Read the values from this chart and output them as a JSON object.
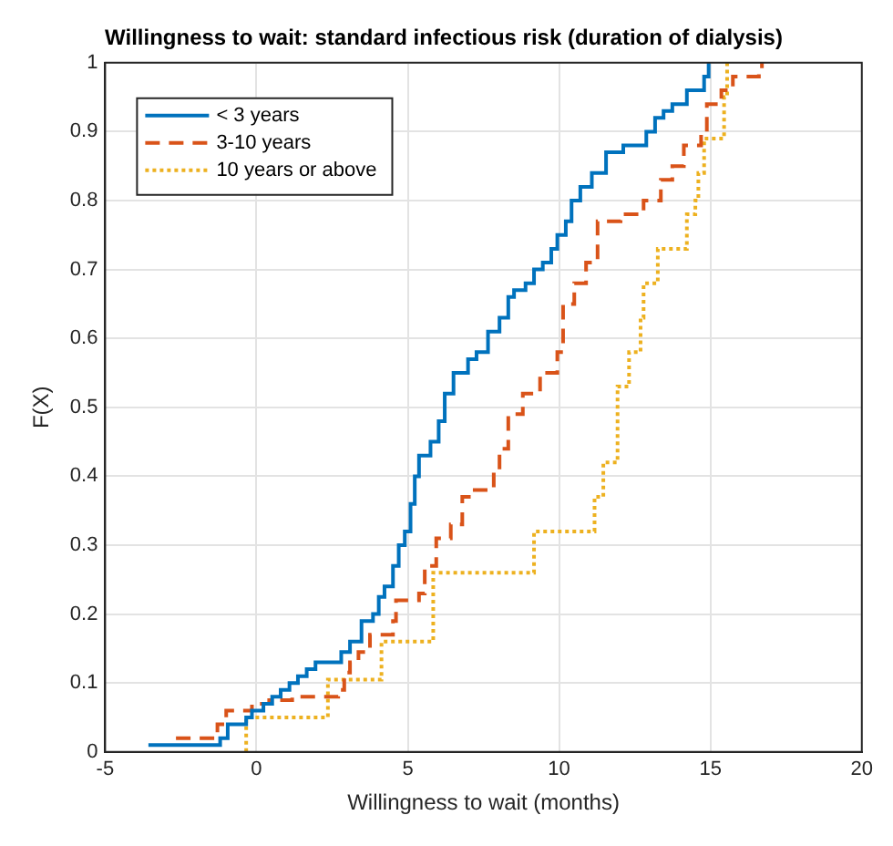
{
  "chart_data": {
    "type": "step",
    "title": "Willingness to wait: standard infectious risk (duration of dialysis)",
    "xlabel": "Willingness to wait (months)",
    "ylabel": "F(X)",
    "xlim": [
      -5,
      20
    ],
    "xticks": [
      -5,
      0,
      5,
      10,
      15,
      20
    ],
    "ylim": [
      0,
      1
    ],
    "yticks": [
      0,
      0.1,
      0.2,
      0.3,
      0.4,
      0.5,
      0.6,
      0.7,
      0.8,
      0.9,
      1
    ],
    "grid": true,
    "legend": "top left",
    "series": [
      {
        "name": "< 3 years",
        "color": "#0072bd",
        "line_style": "solid",
        "x": [
          -3.57,
          -1.35,
          -1.2,
          -0.95,
          -0.34,
          -0.15,
          0.23,
          0.52,
          0.8,
          1.09,
          1.37,
          1.66,
          1.95,
          2.8,
          3.09,
          3.47,
          3.85,
          4.04,
          4.23,
          4.51,
          4.7,
          4.9,
          5.09,
          5.23,
          5.37,
          5.75,
          6.02,
          6.22,
          6.51,
          6.99,
          7.27,
          7.65,
          8.03,
          8.32,
          8.51,
          8.89,
          9.17,
          9.46,
          9.74,
          9.94,
          10.22,
          10.41,
          10.7,
          11.08,
          11.55,
          12.12,
          12.6,
          12.88,
          13.17,
          13.45,
          13.74,
          14.22,
          14.79,
          14.94
        ],
        "values": [
          0.01,
          0.01,
          0.02,
          0.04,
          0.05,
          0.06,
          0.07,
          0.08,
          0.09,
          0.1,
          0.11,
          0.12,
          0.13,
          0.145,
          0.16,
          0.19,
          0.2,
          0.225,
          0.24,
          0.27,
          0.3,
          0.32,
          0.36,
          0.4,
          0.43,
          0.45,
          0.48,
          0.52,
          0.55,
          0.57,
          0.58,
          0.61,
          0.63,
          0.66,
          0.67,
          0.68,
          0.7,
          0.71,
          0.73,
          0.75,
          0.77,
          0.8,
          0.82,
          0.84,
          0.87,
          0.88,
          0.88,
          0.9,
          0.92,
          0.93,
          0.94,
          0.96,
          0.98,
          1
        ]
      },
      {
        "name": "3-10 years",
        "color": "#d95319",
        "line_style": "dashed",
        "x": [
          -2.66,
          -1.29,
          -1.0,
          -0.15,
          0.42,
          1.18,
          2.7,
          2.9,
          3.09,
          3.37,
          3.75,
          4.51,
          4.61,
          5.37,
          5.56,
          5.94,
          6.42,
          6.8,
          7.08,
          7.84,
          8.03,
          8.32,
          8.8,
          9.37,
          9.94,
          10.13,
          10.5,
          10.89,
          11.27,
          11.55,
          12.03,
          12.79,
          13.36,
          13.74,
          14.12,
          14.69,
          14.88,
          15.36,
          15.74,
          16.6,
          16.7
        ],
        "values": [
          0.02,
          0.04,
          0.06,
          0.07,
          0.075,
          0.08,
          0.09,
          0.115,
          0.13,
          0.145,
          0.17,
          0.19,
          0.22,
          0.23,
          0.27,
          0.31,
          0.33,
          0.37,
          0.38,
          0.41,
          0.44,
          0.49,
          0.52,
          0.55,
          0.58,
          0.65,
          0.68,
          0.71,
          0.77,
          0.77,
          0.78,
          0.8,
          0.83,
          0.85,
          0.88,
          0.9,
          0.94,
          0.96,
          0.98,
          0.99,
          1
        ]
      },
      {
        "name": "10 years or above",
        "color": "#edb120",
        "line_style": "dotted",
        "x": [
          -0.34,
          -0.34,
          2.36,
          4.13,
          5.84,
          9.17,
          11.17,
          11.46,
          11.93,
          12.31,
          12.69,
          12.79,
          13.26,
          14.22,
          14.5,
          14.6,
          14.79,
          15.45,
          15.55
        ],
        "values": [
          0,
          0.05,
          0.105,
          0.16,
          0.26,
          0.32,
          0.37,
          0.42,
          0.53,
          0.58,
          0.63,
          0.68,
          0.73,
          0.78,
          0.8,
          0.84,
          0.89,
          0.95,
          1
        ]
      }
    ]
  }
}
